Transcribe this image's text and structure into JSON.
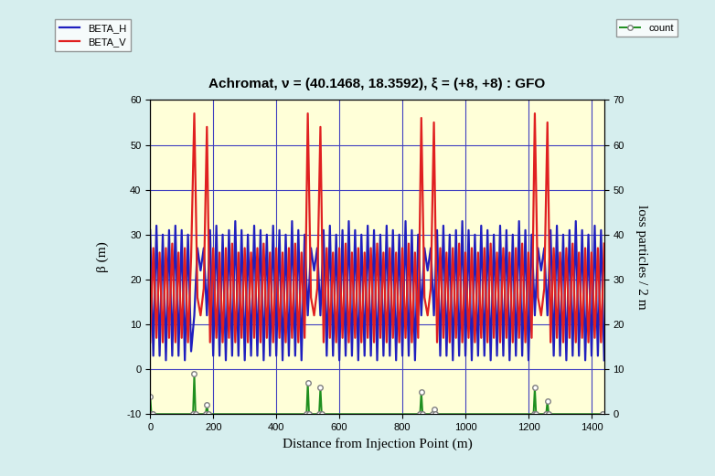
{
  "chart_data": [
    {
      "type": "line",
      "title": "Achromat, ν = (40.1468, 18.3592), ξ = (+8, +8) : GFO",
      "x_label": "Distance from Injection Point (m)",
      "y_label": "β (m)",
      "x": [
        0,
        10,
        20,
        30,
        40,
        50,
        60,
        70,
        80,
        90,
        100,
        110,
        120,
        130,
        140,
        150,
        160,
        170,
        180,
        190,
        200,
        210,
        220,
        230,
        240,
        250,
        260,
        270,
        280,
        290,
        300,
        310,
        320,
        330,
        340,
        350,
        360,
        370,
        380,
        390,
        400,
        410,
        420,
        430,
        440,
        450,
        460,
        470,
        480,
        490,
        500,
        510,
        520,
        530,
        540,
        550,
        560,
        570,
        580,
        590,
        600,
        610,
        620,
        630,
        640,
        650,
        660,
        670,
        680,
        690,
        700,
        710,
        720,
        730,
        740,
        750,
        760,
        770,
        780,
        790,
        800,
        810,
        820,
        830,
        840,
        850,
        860,
        870,
        880,
        890,
        900,
        910,
        920,
        930,
        940,
        950,
        960,
        970,
        980,
        990,
        1000,
        1010,
        1020,
        1030,
        1040,
        1050,
        1060,
        1070,
        1080,
        1090,
        1100,
        1110,
        1120,
        1130,
        1140,
        1150,
        1160,
        1170,
        1180,
        1190,
        1200,
        1210,
        1220,
        1230,
        1240,
        1250,
        1260,
        1270,
        1280,
        1290,
        1300,
        1310,
        1320,
        1330,
        1340,
        1350,
        1360,
        1370,
        1380,
        1390,
        1400,
        1410,
        1420,
        1430,
        1440
      ],
      "series": [
        {
          "name": "BETA_H",
          "color": "#1f1fbf",
          "values": [
            31,
            3,
            32,
            3,
            30,
            2,
            31,
            3,
            32,
            3,
            31,
            2,
            30,
            4,
            12,
            27,
            22,
            27,
            12,
            31,
            3,
            32,
            3,
            30,
            2,
            31,
            3,
            33,
            3,
            31,
            2,
            30,
            3,
            32,
            3,
            31,
            2,
            30,
            3,
            32,
            3,
            31,
            2,
            30,
            3,
            33,
            3,
            31,
            2,
            30,
            12,
            27,
            22,
            27,
            12,
            31,
            3,
            32,
            3,
            30,
            2,
            31,
            3,
            33,
            3,
            31,
            2,
            30,
            3,
            32,
            3,
            31,
            2,
            30,
            3,
            32,
            3,
            31,
            2,
            30,
            3,
            33,
            3,
            31,
            2,
            30,
            12,
            27,
            22,
            27,
            12,
            31,
            3,
            32,
            3,
            30,
            2,
            31,
            3,
            33,
            3,
            31,
            2,
            30,
            3,
            32,
            3,
            31,
            2,
            30,
            3,
            32,
            3,
            31,
            2,
            30,
            3,
            33,
            3,
            31,
            2,
            30,
            12,
            27,
            22,
            27,
            12,
            31,
            3,
            32,
            3,
            30,
            2,
            31,
            3,
            33,
            3,
            31,
            2,
            30,
            3,
            32,
            3,
            31,
            2
          ]
        },
        {
          "name": "BETA_V",
          "color": "#e02020",
          "values": [
            6,
            27,
            7,
            26,
            6,
            27,
            7,
            28,
            6,
            26,
            7,
            27,
            6,
            25,
            57,
            16,
            12,
            18,
            54,
            6,
            27,
            7,
            26,
            6,
            27,
            7,
            28,
            6,
            26,
            7,
            27,
            6,
            26,
            7,
            27,
            6,
            28,
            7,
            26,
            6,
            27,
            7,
            26,
            6,
            27,
            7,
            28,
            6,
            26,
            7,
            57,
            16,
            12,
            18,
            54,
            6,
            27,
            7,
            26,
            6,
            27,
            7,
            28,
            6,
            26,
            7,
            27,
            6,
            26,
            7,
            27,
            6,
            28,
            7,
            26,
            6,
            27,
            7,
            26,
            6,
            27,
            7,
            28,
            6,
            26,
            7,
            56,
            16,
            12,
            18,
            55,
            6,
            27,
            7,
            26,
            6,
            27,
            7,
            28,
            6,
            26,
            7,
            27,
            6,
            26,
            7,
            27,
            6,
            28,
            7,
            26,
            6,
            27,
            7,
            26,
            6,
            27,
            7,
            28,
            6,
            26,
            7,
            57,
            16,
            12,
            18,
            55,
            6,
            27,
            7,
            26,
            6,
            27,
            7,
            28,
            6,
            26,
            7,
            27,
            6,
            26,
            7,
            27,
            6,
            28
          ]
        }
      ],
      "xlim": [
        0,
        1440
      ],
      "xticks": [
        0,
        200,
        400,
        600,
        800,
        1000,
        1200,
        1400
      ],
      "ylim": [
        -10,
        60
      ],
      "yticks": [
        -10,
        0,
        10,
        20,
        30,
        40,
        50,
        60
      ],
      "grid": true,
      "legend": "upper left"
    },
    {
      "type": "line",
      "y_label": "loss particles / 2 m",
      "x": [
        0,
        4,
        8,
        136,
        140,
        144,
        176,
        180,
        184,
        496,
        500,
        504,
        536,
        540,
        544,
        856,
        860,
        864,
        896,
        900,
        904,
        1216,
        1220,
        1224,
        1256,
        1260,
        1264,
        1436
      ],
      "series": [
        {
          "name": "count",
          "color": "#1f8f1f",
          "marker": "o",
          "axis": "y2",
          "values": [
            4,
            0,
            0,
            0,
            9,
            0,
            0,
            2,
            0,
            0,
            7,
            0,
            0,
            6,
            0,
            0,
            5,
            0,
            0,
            1,
            0,
            0,
            6,
            0,
            0,
            3,
            0,
            0
          ]
        }
      ],
      "y2lim": [
        0,
        70
      ],
      "y2ticks": [
        0,
        10,
        20,
        30,
        40,
        50,
        60,
        70
      ],
      "legend": "upper right"
    }
  ]
}
